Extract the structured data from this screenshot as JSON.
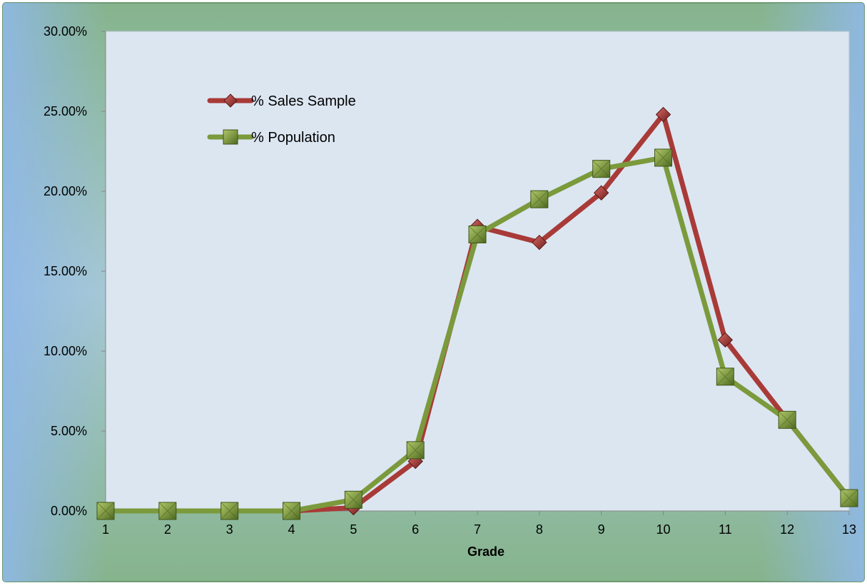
{
  "chart_data": {
    "type": "line",
    "title": "",
    "xlabel": "Grade",
    "ylabel": "",
    "categories": [
      "1",
      "2",
      "3",
      "4",
      "5",
      "6",
      "7",
      "8",
      "9",
      "10",
      "11",
      "12",
      "13"
    ],
    "ylim": [
      0,
      0.3
    ],
    "yticks": [
      "0.00%",
      "5.00%",
      "10.00%",
      "15.00%",
      "20.00%",
      "25.00%",
      "30.00%"
    ],
    "ytick_values": [
      0,
      0.05,
      0.1,
      0.15,
      0.2,
      0.25,
      0.3
    ],
    "grid": false,
    "legend_position": "top-left",
    "series": [
      {
        "name": "% Sales Sample",
        "color": "#a83a38",
        "marker": "diamond",
        "values": [
          0.0,
          0.0,
          0.0,
          0.0,
          0.002,
          0.031,
          0.178,
          0.168,
          0.199,
          0.248,
          0.107,
          0.057,
          0.008
        ]
      },
      {
        "name": "% Population",
        "color": "#7b9a3c",
        "marker": "square",
        "values": [
          0.0,
          0.0,
          0.0,
          0.0,
          0.007,
          0.038,
          0.173,
          0.195,
          0.214,
          0.221,
          0.084,
          0.057,
          0.008
        ]
      }
    ]
  }
}
